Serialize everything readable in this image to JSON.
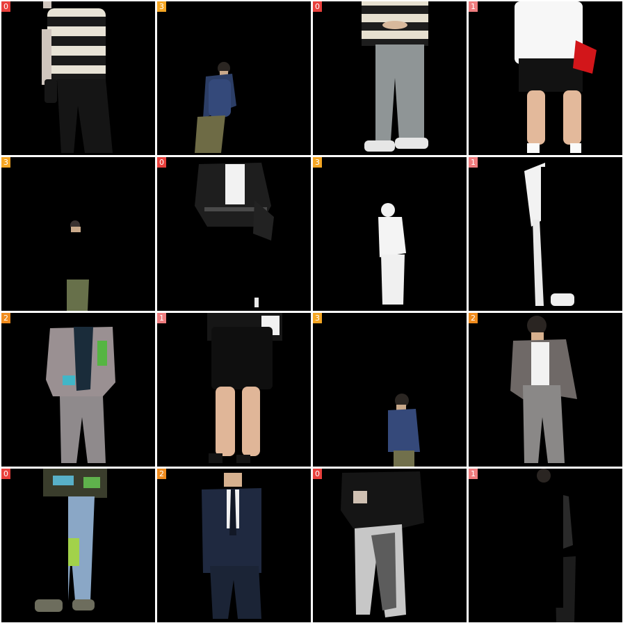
{
  "badge_colors": {
    "0": "#e8403c",
    "1": "#ef7d7f",
    "2": "#f08c1e",
    "3": "#f5a623"
  },
  "tiles": [
    {
      "label": "0",
      "content": "person-striped-shirt-black-pants"
    },
    {
      "label": "3",
      "content": "person-navy-hoodie-small"
    },
    {
      "label": "0",
      "content": "person-striped-shirt-gray-jeans"
    },
    {
      "label": "1",
      "content": "person-white-tee-black-shorts"
    },
    {
      "label": "3",
      "content": "person-tiny-cropped"
    },
    {
      "label": "0",
      "content": "person-black-denim-jacket"
    },
    {
      "label": "3",
      "content": "person-white-silhouette"
    },
    {
      "label": "1",
      "content": "person-white-occluded"
    },
    {
      "label": "2",
      "content": "person-gray-suit-glitched"
    },
    {
      "label": "1",
      "content": "person-black-shorts"
    },
    {
      "label": "3",
      "content": "person-navy-hoodie-small"
    },
    {
      "label": "2",
      "content": "person-gray-suit"
    },
    {
      "label": "0",
      "content": "person-jeans-glitched"
    },
    {
      "label": "2",
      "content": "person-navy-suit"
    },
    {
      "label": "0",
      "content": "person-black-sweater-gray-pants"
    },
    {
      "label": "1",
      "content": "person-dark-occluded"
    }
  ]
}
